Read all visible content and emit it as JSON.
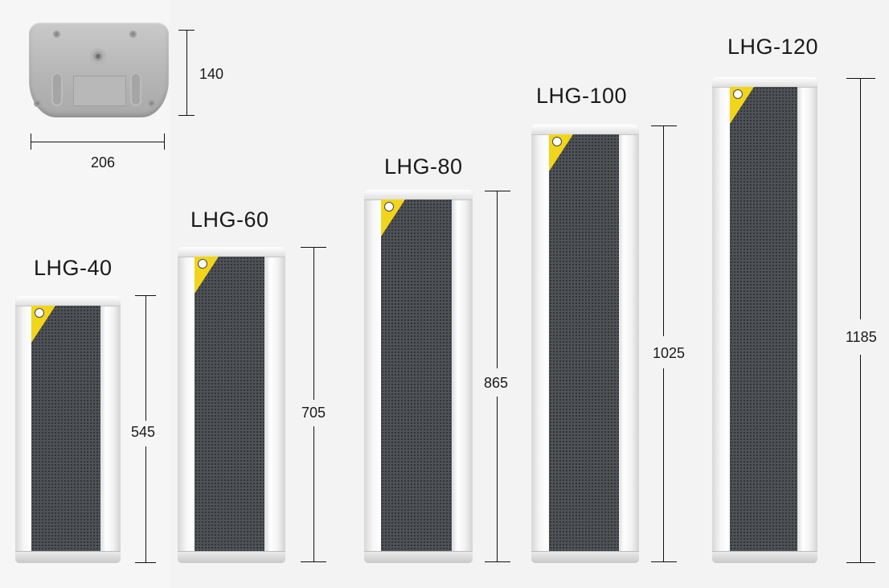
{
  "dimensions": {
    "base_height": "140",
    "base_width": "206"
  },
  "models": [
    {
      "name": "LHG-40",
      "height": "545"
    },
    {
      "name": "LHG-60",
      "height": "705"
    },
    {
      "name": "LHG-80",
      "height": "865"
    },
    {
      "name": "LHG-100",
      "height": "1025"
    },
    {
      "name": "LHG-120",
      "height": "1185"
    }
  ],
  "colors": {
    "background": "#f6f6f6",
    "housing": "#e8e8e8",
    "grille": "#4f5256",
    "sticker": "#f1d51b",
    "text": "#1a1a1a"
  }
}
